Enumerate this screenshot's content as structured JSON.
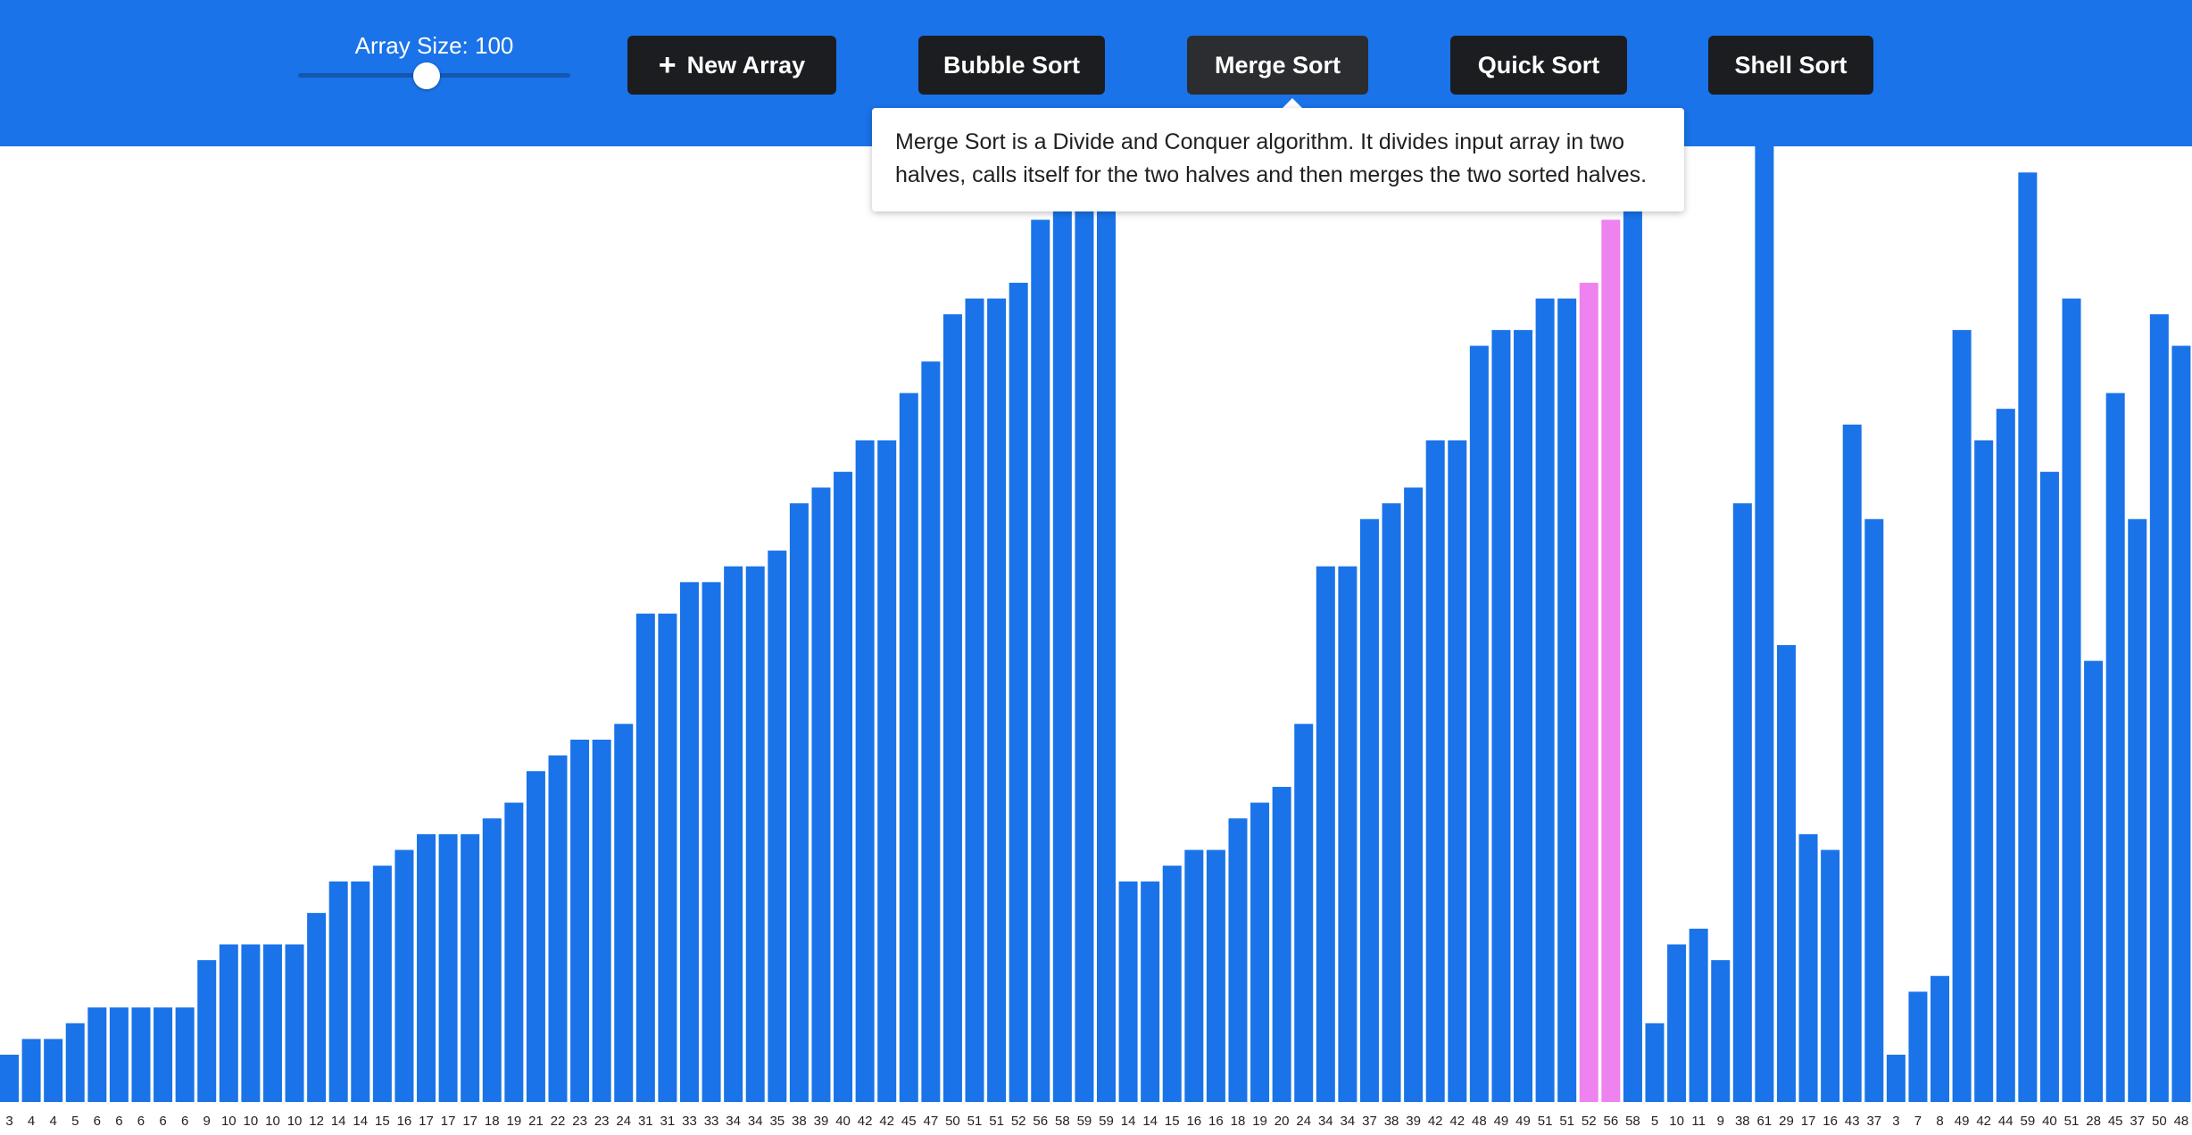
{
  "header": {
    "slider": {
      "label": "Array Size: 100",
      "value": 100,
      "min": 10,
      "max": 200
    },
    "buttons": {
      "new_array": "New Array",
      "bubble_sort": "Bubble Sort",
      "merge_sort": "Merge Sort",
      "quick_sort": "Quick Sort",
      "shell_sort": "Shell Sort"
    }
  },
  "tooltip": {
    "text": "Merge Sort is a Divide and Conquer algorithm. It divides input array in two halves, calls itself for the two halves and then merges the two sorted halves."
  },
  "colors": {
    "header": "#1a73e8",
    "bar": "#1a73e8",
    "highlight": "#ee82ee",
    "button": "#1c1d20"
  },
  "chart_data": {
    "type": "bar",
    "values": [
      3,
      4,
      4,
      5,
      6,
      6,
      6,
      6,
      6,
      9,
      10,
      10,
      10,
      10,
      12,
      14,
      14,
      15,
      16,
      17,
      17,
      17,
      18,
      19,
      21,
      22,
      23,
      23,
      24,
      31,
      31,
      33,
      33,
      34,
      34,
      35,
      38,
      39,
      40,
      42,
      42,
      45,
      47,
      50,
      51,
      51,
      52,
      56,
      58,
      59,
      59,
      14,
      14,
      15,
      16,
      16,
      18,
      19,
      20,
      24,
      34,
      34,
      37,
      38,
      39,
      42,
      42,
      48,
      49,
      49,
      51,
      51,
      52,
      56,
      58,
      5,
      10,
      11,
      9,
      38,
      61,
      29,
      17,
      16,
      43,
      37,
      3,
      7,
      8,
      49,
      42,
      44,
      59,
      40,
      51,
      28,
      45,
      37,
      50,
      48
    ],
    "labels": [
      "3",
      "4",
      "4",
      "5",
      "6",
      "6",
      "6",
      "6",
      "6",
      "9",
      "10",
      "10",
      "10",
      "10",
      "12",
      "14",
      "14",
      "15",
      "16",
      "17",
      "17",
      "17",
      "18",
      "19",
      "21",
      "22",
      "23",
      "23",
      "24",
      "31",
      "31",
      "33",
      "33",
      "34",
      "34",
      "35",
      "38",
      "39",
      "40",
      "42",
      "42",
      "45",
      "47",
      "50",
      "51",
      "51",
      "52",
      "56",
      "58",
      "59",
      "59",
      "14",
      "14",
      "15",
      "16",
      "16",
      "18",
      "19",
      "20",
      "24",
      "34",
      "34",
      "37",
      "38",
      "39",
      "42",
      "42",
      "48",
      "49",
      "49",
      "51",
      "51",
      "52",
      "56",
      "58",
      "5",
      "10",
      "11",
      "9",
      "38",
      "61",
      "29",
      "17",
      "16",
      "43",
      "37",
      "3",
      "7",
      "8",
      "49",
      "42",
      "44",
      "59",
      "40",
      "51",
      "28",
      "45",
      "37",
      "50",
      "48"
    ],
    "highlighted_indices": [
      72,
      73
    ],
    "ylim": [
      0,
      61
    ]
  }
}
